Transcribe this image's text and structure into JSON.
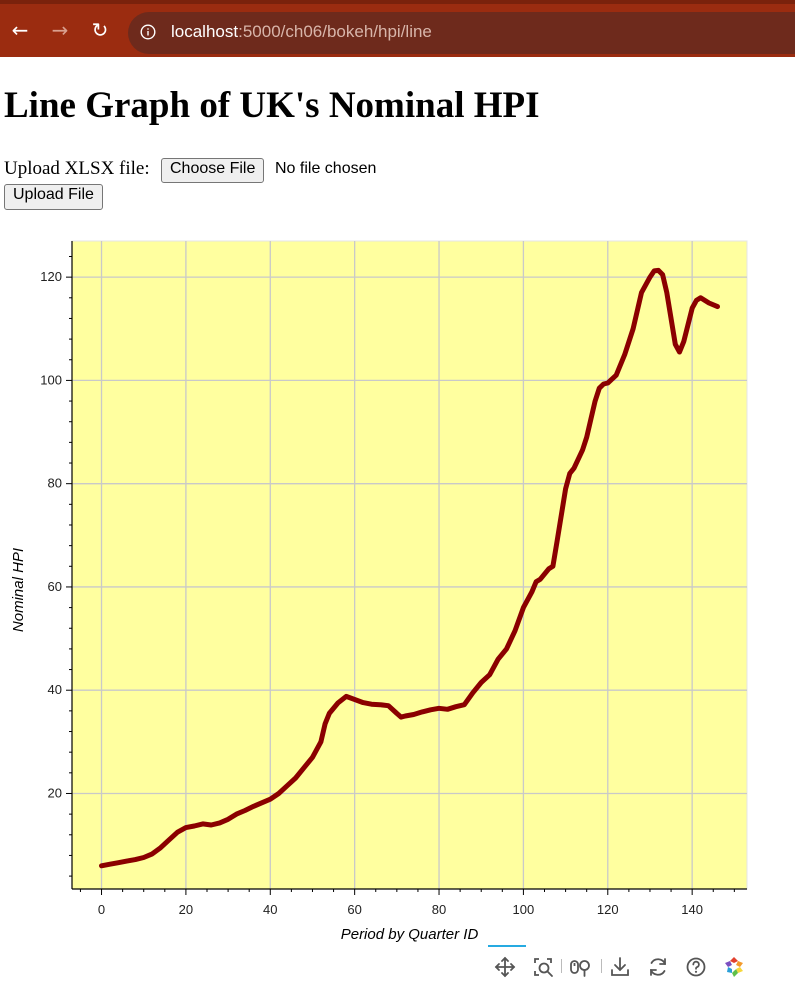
{
  "browser": {
    "url_host": "localhost",
    "url_path": ":5000/ch06/bokeh/hpi/line",
    "back_icon": "arrow-left-icon",
    "forward_icon": "arrow-right-icon",
    "reload_icon": "reload-icon",
    "info_icon": "info-icon",
    "back_glyph": "←",
    "forward_glyph": "→",
    "reload_glyph": "↻"
  },
  "page": {
    "title": "Line Graph of UK's Nominal HPI"
  },
  "upload": {
    "label": "Upload XLSX file:",
    "choose_button": "Choose File",
    "no_file_text": "No file chosen",
    "submit_button": "Upload File"
  },
  "colors": {
    "plot_background": "#ffff9f",
    "line": "#8b0000",
    "grid": "#c9c9c9",
    "browser_bar": "#9b2c10",
    "toolbar_active": "#26aae1"
  },
  "toolbar": {
    "tools": [
      "pan-icon",
      "box-zoom-icon",
      "wheel-zoom-icon",
      "save-icon",
      "reset-icon",
      "help-icon",
      "bokeh-logo-icon"
    ]
  },
  "chart_data": {
    "type": "line",
    "title": "",
    "xlabel": "Period by Quarter ID",
    "ylabel": "Nominal HPI",
    "xlim": [
      -7,
      153
    ],
    "ylim": [
      1.5,
      127
    ],
    "x_ticks": [
      0,
      20,
      40,
      60,
      80,
      100,
      120,
      140
    ],
    "y_ticks": [
      20,
      40,
      60,
      80,
      100,
      120
    ],
    "grid": true,
    "legend": "none",
    "series": [
      {
        "x": [
          0,
          2,
          4,
          6,
          8,
          10,
          12,
          14,
          16,
          18,
          20,
          22,
          24,
          26,
          28,
          30,
          32,
          34,
          36,
          38,
          40,
          42,
          44,
          46,
          48,
          50,
          52,
          53,
          54,
          56,
          58,
          60,
          62,
          64,
          66,
          68,
          70,
          71,
          72,
          74,
          76,
          78,
          80,
          82,
          84,
          86,
          88,
          90,
          92,
          94,
          96,
          98,
          100,
          102,
          103,
          104,
          106,
          107,
          108,
          110,
          111,
          112,
          114,
          115,
          116,
          117,
          118,
          119,
          120,
          122,
          124,
          126,
          128,
          130,
          131,
          132,
          133,
          134,
          136,
          137,
          138,
          140,
          141,
          142,
          144,
          146
        ],
        "y": [
          6.0,
          6.3,
          6.6,
          6.9,
          7.2,
          7.6,
          8.3,
          9.5,
          11.0,
          12.5,
          13.4,
          13.7,
          14.1,
          13.9,
          14.3,
          15.0,
          16.0,
          16.7,
          17.5,
          18.2,
          18.9,
          20.0,
          21.5,
          23.0,
          25.0,
          27.0,
          30.0,
          33.5,
          35.5,
          37.5,
          38.8,
          38.2,
          37.6,
          37.3,
          37.2,
          37.0,
          35.5,
          34.8,
          35.0,
          35.3,
          35.8,
          36.2,
          36.5,
          36.3,
          36.8,
          37.2,
          39.5,
          41.5,
          43.0,
          46.0,
          48.0,
          51.5,
          56.0,
          59.0,
          61.0,
          61.5,
          63.5,
          64.0,
          69.0,
          79.0,
          82.0,
          83.0,
          86.5,
          89.0,
          92.5,
          96.0,
          98.5,
          99.3,
          99.5,
          101.0,
          105.0,
          110.0,
          117.0,
          120.0,
          121.2,
          121.3,
          120.5,
          117.0,
          107.0,
          105.5,
          107.5,
          114.0,
          115.5,
          116.0,
          115.0,
          114.3
        ]
      }
    ]
  }
}
